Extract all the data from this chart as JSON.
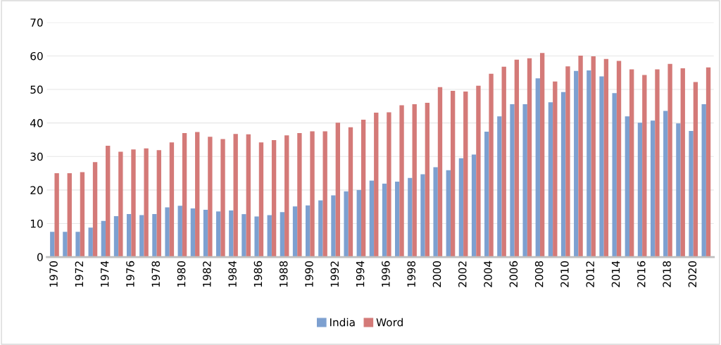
{
  "chart_data": {
    "type": "bar",
    "categories": [
      "1970",
      null,
      "1972",
      null,
      "1974",
      null,
      "1976",
      null,
      "1978",
      null,
      "1980",
      null,
      "1982",
      null,
      "1984",
      null,
      "1986",
      null,
      "1988",
      null,
      "1990",
      null,
      "1992",
      null,
      "1994",
      null,
      "1996",
      null,
      "1998",
      null,
      "2000",
      null,
      "2002",
      null,
      "2004",
      null,
      "2006",
      null,
      "2008",
      null,
      "2010",
      null,
      "2012",
      null,
      "2014",
      null,
      "2016",
      null,
      "2018",
      null,
      "2020",
      null
    ],
    "series": [
      {
        "name": "India",
        "color": "#7da0d0",
        "values": [
          7.5,
          7.5,
          7.5,
          8.8,
          10.8,
          12.2,
          12.8,
          12.5,
          12.8,
          14.8,
          15.3,
          14.5,
          14.1,
          13.6,
          13.9,
          12.8,
          12.1,
          12.5,
          13.4,
          15.1,
          15.4,
          16.9,
          18.4,
          19.6,
          20.0,
          22.8,
          21.9,
          22.5,
          23.6,
          24.7,
          26.8,
          25.9,
          29.5,
          30.6,
          37.4,
          42.0,
          45.6,
          45.6,
          53.3,
          46.2,
          49.2,
          55.5,
          55.7,
          53.9,
          48.9,
          42.0,
          40.1,
          40.7,
          43.6,
          39.9,
          37.6,
          45.6
        ]
      },
      {
        "name": "Word",
        "color": "#d47a78",
        "values": [
          25.0,
          25.0,
          25.3,
          28.3,
          33.2,
          31.4,
          32.1,
          32.4,
          31.9,
          34.2,
          37.0,
          37.3,
          35.9,
          35.2,
          36.7,
          36.6,
          34.2,
          34.9,
          36.3,
          37.0,
          37.5,
          37.5,
          40.1,
          38.7,
          41.0,
          43.1,
          43.2,
          45.3,
          45.6,
          46.0,
          50.7,
          49.6,
          49.4,
          51.1,
          54.7,
          56.8,
          58.9,
          59.3,
          60.9,
          52.4,
          56.9,
          60.1,
          59.9,
          59.1,
          58.5,
          56.0,
          54.3,
          56.0,
          57.6,
          56.3,
          52.2,
          56.6
        ]
      }
    ],
    "ylim": [
      0,
      70
    ],
    "yticks": [
      0,
      10,
      20,
      30,
      40,
      50,
      60,
      70
    ],
    "grid": "y",
    "legend": "bottom"
  }
}
